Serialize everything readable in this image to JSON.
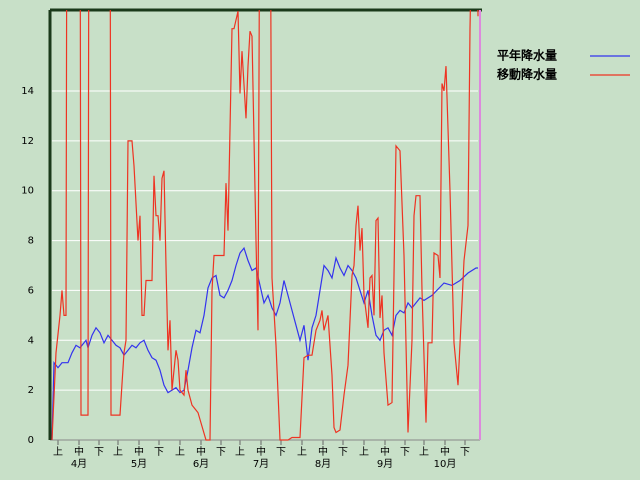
{
  "chart_data": {
    "type": "line",
    "xlim": [
      0,
      213
    ],
    "ylim": [
      0,
      17.25
    ],
    "yticks": [
      0,
      2,
      4,
      6,
      8,
      10,
      12,
      14
    ],
    "grid": true,
    "legend": "upper right",
    "xticks": [
      {
        "value": 3,
        "label": "上"
      },
      {
        "value": 13.5,
        "label": "中"
      },
      {
        "value": 23.5,
        "label": "下"
      },
      {
        "value": 33,
        "label": "上"
      },
      {
        "value": 43.5,
        "label": "中"
      },
      {
        "value": 53.5,
        "label": "下"
      },
      {
        "value": 64,
        "label": "上"
      },
      {
        "value": 74.5,
        "label": "中"
      },
      {
        "value": 84.5,
        "label": "下"
      },
      {
        "value": 94,
        "label": "上"
      },
      {
        "value": 104.5,
        "label": "中"
      },
      {
        "value": 114.5,
        "label": "下"
      },
      {
        "value": 125,
        "label": "上"
      },
      {
        "value": 135.5,
        "label": "中"
      },
      {
        "value": 145.5,
        "label": "下"
      },
      {
        "value": 156,
        "label": "上"
      },
      {
        "value": 166.5,
        "label": "中"
      },
      {
        "value": 176.5,
        "label": "下"
      },
      {
        "value": 186,
        "label": "上"
      },
      {
        "value": 196.5,
        "label": "中"
      },
      {
        "value": 206.5,
        "label": "下"
      }
    ],
    "month_ticks": [
      {
        "value": 13.5,
        "label": "4月"
      },
      {
        "value": 43.5,
        "label": "5月"
      },
      {
        "value": 74.5,
        "label": "6月"
      },
      {
        "value": 104.5,
        "label": "7月"
      },
      {
        "value": 135.5,
        "label": "8月"
      },
      {
        "value": 166.5,
        "label": "9月"
      },
      {
        "value": 196.5,
        "label": "10月"
      }
    ],
    "series": [
      {
        "name": "平年降水量",
        "color": "#3333ee",
        "x": [
          0,
          1,
          3,
          5,
          8,
          10,
          12,
          14,
          17,
          18,
          20,
          22,
          24,
          26,
          28,
          30,
          32,
          34,
          36,
          38,
          40,
          42,
          44,
          46,
          48,
          50,
          52,
          54,
          56,
          58,
          60,
          62,
          64,
          66,
          68,
          70,
          72,
          74,
          76,
          78,
          80,
          82,
          84,
          86,
          88,
          90,
          92,
          94,
          96,
          98,
          100,
          102,
          104,
          106,
          108,
          110,
          112,
          114,
          116,
          118,
          120,
          122,
          124,
          126,
          128,
          130,
          132,
          134,
          136,
          138,
          140,
          142,
          144,
          146,
          148,
          150,
          152,
          154,
          156,
          158,
          160,
          162,
          164,
          166,
          168,
          170,
          172,
          174,
          176,
          178,
          180,
          182,
          184,
          186,
          190,
          196,
          200,
          204,
          208,
          212,
          213
        ],
        "values": [
          0,
          3.1,
          2.9,
          3.1,
          3.1,
          3.5,
          3.8,
          3.7,
          4.0,
          3.7,
          4.2,
          4.5,
          4.3,
          3.9,
          4.2,
          4.0,
          3.8,
          3.7,
          3.4,
          3.6,
          3.8,
          3.7,
          3.9,
          4.0,
          3.6,
          3.3,
          3.2,
          2.8,
          2.2,
          1.9,
          2.0,
          2.1,
          1.9,
          2.0,
          2.8,
          3.7,
          4.4,
          4.3,
          5.0,
          6.1,
          6.5,
          6.6,
          5.8,
          5.7,
          6.0,
          6.4,
          7.0,
          7.5,
          7.7,
          7.2,
          6.8,
          6.9,
          6.2,
          5.5,
          5.8,
          5.3,
          5.0,
          5.5,
          6.4,
          5.8,
          5.2,
          4.6,
          4.0,
          4.6,
          3.2,
          4.5,
          5.0,
          6.0,
          7.0,
          6.8,
          6.5,
          7.3,
          6.9,
          6.6,
          7.0,
          6.8,
          6.5,
          6.0,
          5.5,
          6.0,
          5.0,
          4.2,
          4.0,
          4.4,
          4.5,
          4.2,
          5.0,
          5.2,
          5.1,
          5.5,
          5.3,
          5.5,
          5.7,
          5.6,
          5.8,
          6.3,
          6.2,
          6.4,
          6.7,
          6.9,
          6.9
        ]
      },
      {
        "name": "移動降水量",
        "color": "#ee3322",
        "x": [
          0,
          2,
          4,
          5,
          6,
          7,
          7.5,
          14,
          14.5,
          18,
          18.5,
          29,
          29.5,
          34,
          36,
          37,
          38,
          40,
          41,
          43,
          44,
          45,
          46,
          47,
          50,
          51,
          52,
          53,
          54,
          55,
          56,
          57,
          58,
          59,
          60,
          62,
          63,
          64,
          66,
          67,
          68,
          70,
          72,
          73,
          77,
          79,
          80,
          81,
          86,
          87,
          88,
          90,
          91,
          93,
          94,
          95,
          97,
          98,
          99,
          100,
          102,
          103,
          104,
          109,
          110,
          112,
          114,
          118,
          120,
          124,
          126,
          128,
          130,
          132,
          134,
          135,
          136,
          138,
          140,
          141,
          142,
          144,
          146,
          148,
          150,
          151,
          152,
          153,
          154,
          155,
          156,
          158,
          159,
          160,
          161,
          162,
          163,
          164,
          165,
          166,
          168,
          170,
          171,
          172,
          174,
          176,
          178,
          180,
          181,
          182,
          184,
          185,
          187,
          188,
          190,
          191,
          193,
          194,
          195,
          196,
          197,
          199,
          201,
          203,
          205,
          206,
          208,
          209,
          211,
          212,
          213
        ],
        "values": [
          0,
          3.5,
          5.0,
          6.0,
          5.0,
          5.0,
          25,
          25,
          1.0,
          1.0,
          25,
          25,
          1.0,
          1.0,
          3.5,
          4.0,
          12,
          12,
          11,
          8,
          9,
          5,
          5,
          6.4,
          6.4,
          10.6,
          9,
          9,
          8,
          10.5,
          10.8,
          7,
          3.6,
          4.8,
          2.0,
          3.6,
          3.2,
          2.0,
          1.8,
          2.8,
          2.0,
          1.4,
          1.2,
          1.1,
          0,
          0,
          6.0,
          7.4,
          7.4,
          10.3,
          8.4,
          16.5,
          16.5,
          17.2,
          13.9,
          15.6,
          12.9,
          15,
          16.4,
          16.2,
          8,
          4.4,
          25,
          25,
          6.5,
          3.8,
          0,
          0,
          0.1,
          0.1,
          3.3,
          3.4,
          3.4,
          4.4,
          4.8,
          5.2,
          4.4,
          5.0,
          2.6,
          0.5,
          0.3,
          0.4,
          1.8,
          3.0,
          6.6,
          7.0,
          8.6,
          9.4,
          7.6,
          8.5,
          5.8,
          4.5,
          6.5,
          6.6,
          5.0,
          8.8,
          8.9,
          4.9,
          5.8,
          3.5,
          1.4,
          1.5,
          6.6,
          11.8,
          11.6,
          7.4,
          0.3,
          4.0,
          9.0,
          9.8,
          9.8,
          6.0,
          0.7,
          3.9,
          3.9,
          7.5,
          7.4,
          6.5,
          14.3,
          14.0,
          15.0,
          10.0,
          3.9,
          2.2,
          5.5,
          7.2,
          8.6,
          16.5,
          25,
          25,
          17
        ]
      }
    ]
  }
}
